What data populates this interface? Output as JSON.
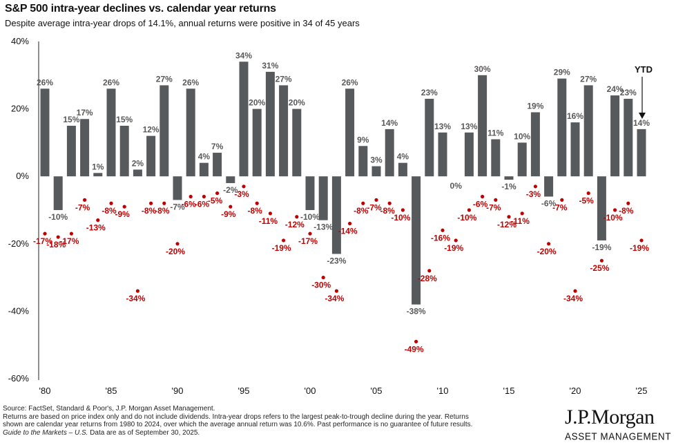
{
  "header": {
    "title": "S&P 500 intra-year declines vs. calendar year returns",
    "subtitle": "Despite average intra-year drops of 14.1%, annual returns were positive in 34 of 45 years"
  },
  "chart_data": {
    "type": "bar",
    "title": "S&P 500 intra-year declines vs. calendar year returns",
    "subtitle": "Despite average intra-year drops of 14.1%, annual returns were positive in 34 of 45 years",
    "ylim": [
      -60,
      40
    ],
    "y_ticks": [
      "40%",
      "20%",
      "0%",
      "-20%",
      "-40%",
      "-60%"
    ],
    "y_tick_values": [
      40,
      20,
      0,
      -20,
      -40,
      -60
    ],
    "x_ticks": [
      "'80",
      "'85",
      "'90",
      "'95",
      "'00",
      "'05",
      "'10",
      "'15",
      "'20",
      "'25"
    ],
    "x_tick_years": [
      1980,
      1985,
      1990,
      1995,
      2000,
      2005,
      2010,
      2015,
      2020,
      2025
    ],
    "years": [
      1980,
      1981,
      1982,
      1983,
      1984,
      1985,
      1986,
      1987,
      1988,
      1989,
      1990,
      1991,
      1992,
      1993,
      1994,
      1995,
      1996,
      1997,
      1998,
      1999,
      2000,
      2001,
      2002,
      2003,
      2004,
      2005,
      2006,
      2007,
      2008,
      2009,
      2010,
      2011,
      2012,
      2013,
      2014,
      2015,
      2016,
      2017,
      2018,
      2019,
      2020,
      2021,
      2022,
      2023,
      2024,
      2025
    ],
    "series": [
      {
        "name": "Calendar year return",
        "kind": "bar",
        "color": "#565a5c",
        "values": [
          26,
          -10,
          15,
          17,
          1,
          26,
          15,
          2,
          12,
          27,
          -7,
          26,
          4,
          7,
          -2,
          34,
          20,
          31,
          27,
          20,
          -10,
          -13,
          -23,
          26,
          9,
          3,
          14,
          4,
          -38,
          23,
          13,
          0,
          13,
          30,
          11,
          -1,
          10,
          19,
          -6,
          29,
          16,
          27,
          -19,
          24,
          23,
          14
        ],
        "labels": [
          "26%",
          "-10%",
          "15%",
          "17%",
          "1%",
          "26%",
          "15%",
          "2%",
          "12%",
          "27%",
          "-7%",
          "26%",
          "4%",
          "7%",
          "-2%",
          "34%",
          "20%",
          "31%",
          "27%",
          "20%",
          "-10%",
          "-13%",
          "-23%",
          "26%",
          "9%",
          "3%",
          "14%",
          "4%",
          "-38%",
          "23%",
          "13%",
          "0%",
          "13%",
          "30%",
          "11%",
          "-1%",
          "10%",
          "19%",
          "-6%",
          "29%",
          "16%",
          "27%",
          "-19%",
          "24%",
          "23%",
          "14%"
        ]
      },
      {
        "name": "Intra-year decline",
        "kind": "scatter",
        "color": "#c00000",
        "values": [
          -17,
          -18,
          -17,
          -7,
          -13,
          -8,
          -9,
          -34,
          -8,
          -8,
          -20,
          -6,
          -6,
          -5,
          -9,
          -3,
          -8,
          -11,
          -19,
          -12,
          -17,
          -30,
          -34,
          -14,
          -8,
          -7,
          -8,
          -10,
          -49,
          -28,
          -16,
          -19,
          -10,
          -6,
          -7,
          -12,
          -11,
          -3,
          -20,
          -7,
          -34,
          -5,
          -25,
          -10,
          -8,
          -19
        ],
        "labels": [
          "-17%",
          "-18%",
          "-17%",
          "-7%",
          "-13%",
          "-8%",
          "-9%",
          "-34%",
          "-8%",
          "-8%",
          "-20%",
          "-6%",
          "-6%",
          "-5%",
          "-9%",
          "-3%",
          "-8%",
          "-11%",
          "-19%",
          "-12%",
          "-17%",
          "-30%",
          "-34%",
          "-14%",
          "-8%",
          "-7%",
          "-8%",
          "-10%",
          "-49%",
          "-28%",
          "-16%",
          "-19%",
          "-10%",
          "-6%",
          "-7%",
          "-12%",
          "-11%",
          "-3%",
          "-20%",
          "-7%",
          "-34%",
          "-5%",
          "-25%",
          "-10%",
          "-8%",
          "-19%"
        ]
      }
    ],
    "annotation": {
      "text": "YTD",
      "year": 2025
    },
    "colors": {
      "bar": "#565a5c",
      "bar_label": "#595959",
      "decline": "#c00000",
      "axis": "#222222"
    }
  },
  "footer": {
    "source_lines": [
      "Source: FactSet, Standard & Poor's, J.P. Morgan Asset Management.",
      "Returns are based on price index only and do not include dividends. Intra-year drops refers to the largest peak-to-trough decline during the year. Returns",
      "shown are calendar year returns from 1980 to 2024, over which the average annual return was 10.6%. Past performance is no guarantee of future results."
    ],
    "guide_italic": "Guide to the Markets – U.S.",
    "guide_rest": " Data are as of September 30, 2025."
  },
  "logo": {
    "main": "J.P.Morgan",
    "sub": "ASSET MANAGEMENT"
  }
}
